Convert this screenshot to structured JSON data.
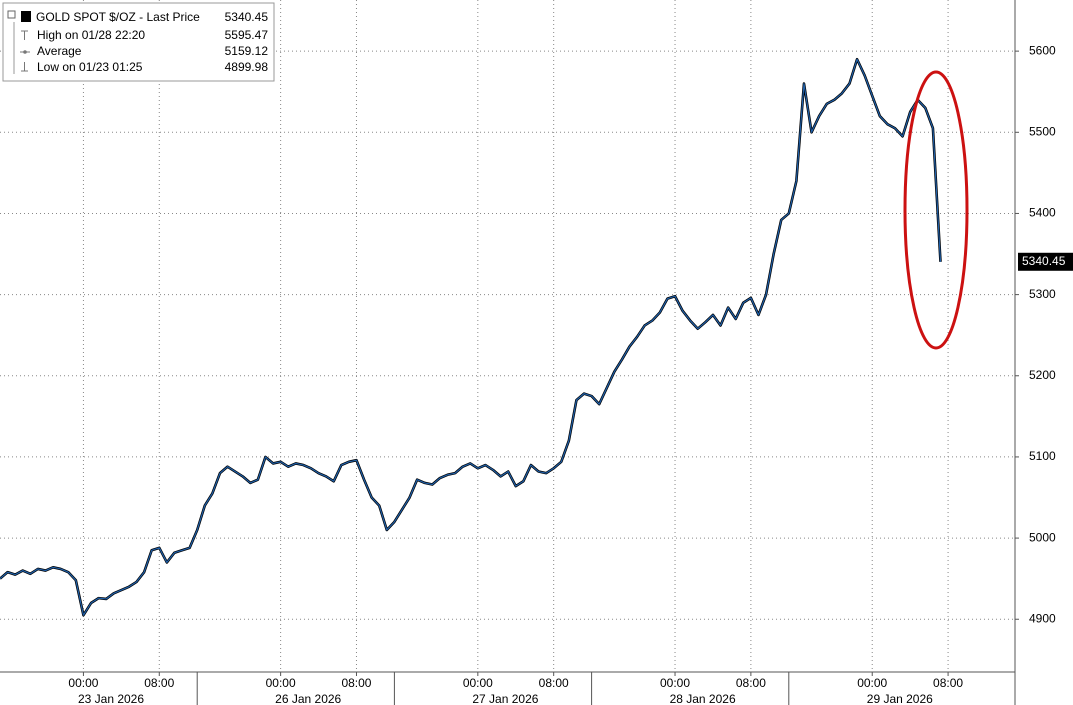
{
  "chart_data": {
    "type": "line",
    "legend": [
      {
        "label": "GOLD SPOT $/OZ - Last Price",
        "value": 5340.45
      },
      {
        "label": "High on 01/28 22:20",
        "value": 5595.47
      },
      {
        "label": "Average",
        "value": 5159.12
      },
      {
        "label": "Low on 01/23 01:25",
        "value": 4899.98
      }
    ],
    "categories": [
      null,
      null,
      null,
      null,
      null,
      null,
      null,
      null,
      null,
      null,
      null,
      "00:00",
      null,
      null,
      null,
      null,
      null,
      null,
      null,
      null,
      null,
      "08:00",
      null,
      null,
      null,
      null,
      null,
      null,
      null,
      null,
      null,
      null,
      null,
      null,
      null,
      null,
      null,
      "00:00",
      null,
      null,
      null,
      null,
      null,
      null,
      null,
      null,
      null,
      "08:00",
      null,
      null,
      null,
      null,
      null,
      null,
      null,
      null,
      null,
      null,
      null,
      null,
      null,
      null,
      null,
      "00:00",
      null,
      null,
      null,
      null,
      null,
      null,
      null,
      null,
      null,
      "08:00",
      null,
      null,
      null,
      null,
      null,
      null,
      null,
      null,
      null,
      null,
      null,
      null,
      null,
      null,
      null,
      "00:00",
      null,
      null,
      null,
      null,
      null,
      null,
      null,
      null,
      null,
      "08:00",
      null,
      null,
      null,
      null,
      null,
      null,
      null,
      null,
      null,
      null,
      null,
      null,
      null,
      null,
      null,
      "00:00",
      null,
      null,
      null,
      null,
      null,
      null,
      null,
      null,
      null,
      "08:00",
      null,
      null,
      null,
      null
    ],
    "x_groups": [
      "23 Jan 2026",
      "26 Jan 2026",
      "27 Jan 2026",
      "28 Jan 2026",
      "29 Jan 2026"
    ],
    "series": [
      {
        "name": "GOLD SPOT $/OZ - Last Price",
        "color": "#1f5fa8",
        "values": [
          4950,
          4958,
          4955,
          4960,
          4956,
          4962,
          4960,
          4964,
          4962,
          4958,
          4948,
          4905,
          4920,
          4926,
          4925,
          4932,
          4936,
          4940,
          4946,
          4958,
          4985,
          4988,
          4970,
          4982,
          4985,
          4988,
          5010,
          5040,
          5055,
          5080,
          5088,
          5082,
          5076,
          5068,
          5072,
          5100,
          5092,
          5094,
          5088,
          5092,
          5090,
          5086,
          5080,
          5076,
          5070,
          5090,
          5094,
          5096,
          5072,
          5050,
          5040,
          5010,
          5020,
          5035,
          5050,
          5072,
          5068,
          5066,
          5074,
          5078,
          5080,
          5088,
          5092,
          5086,
          5090,
          5084,
          5076,
          5082,
          5064,
          5070,
          5090,
          5082,
          5080,
          5086,
          5094,
          5120,
          5170,
          5178,
          5175,
          5165,
          5185,
          5205,
          5220,
          5236,
          5248,
          5262,
          5268,
          5278,
          5295,
          5298,
          5280,
          5268,
          5258,
          5266,
          5275,
          5262,
          5284,
          5270,
          5290,
          5296,
          5275,
          5300,
          5350,
          5392,
          5400,
          5440,
          5560,
          5500,
          5520,
          5535,
          5540,
          5548,
          5560,
          5590,
          5570,
          5545,
          5520,
          5510,
          5505,
          5495,
          5525,
          5540,
          5530,
          5505,
          5340.45,
          null,
          null,
          null,
          null,
          null
        ]
      }
    ],
    "ylim": [
      4835,
      5663
    ],
    "yticks": [
      4900,
      5000,
      5100,
      5200,
      5300,
      5400,
      5500,
      5600
    ],
    "grid": true
  }
}
